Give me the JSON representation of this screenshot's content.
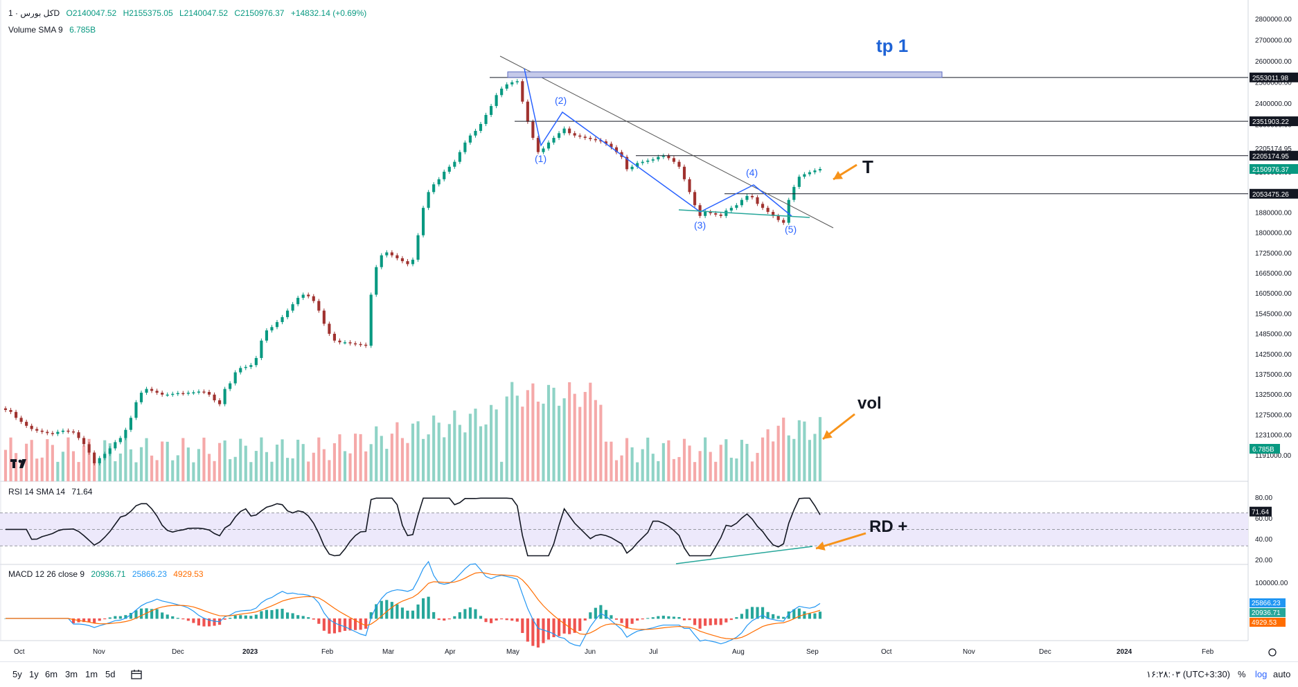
{
  "legend": {
    "symbol": "کل بورس · 1D",
    "open": "O2140047.52",
    "high": "H2155375.05",
    "low": "L2140047.52",
    "close": "C2150976.37",
    "change": "+14832.14 (+0.69%)",
    "volume_label": "Volume SMA 9",
    "volume_value": "6.785B",
    "rsi_label": "RSI 14 SMA 14",
    "rsi_value": "71.64",
    "macd_label": "MACD 12 26 close 9",
    "macd_value": "20936.71",
    "macd_signal": "25866.23",
    "macd_hist": "4929.53"
  },
  "colors": {
    "up": "#089981",
    "down": "#a0322f",
    "vol_up": "#8fd3c6",
    "vol_down": "#f5a9a9",
    "wave": "#2962ff",
    "support": "#26a69a",
    "arrow": "#f7931a",
    "rsi_band": "#ede9fb",
    "macd_line": "#2196f3",
    "signal_line": "#ff6d00"
  },
  "chart_data": {
    "type": "candlestick",
    "price_axis_ticks": [
      "2800000.00",
      "2700000.00",
      "2600000.00",
      "2500000.00",
      "2400000.00",
      "2300000.00",
      "2205174.95",
      "2100000.00",
      "1960000.00",
      "1880000.00",
      "1800000.00",
      "1725000.00",
      "1665000.00",
      "1605000.00",
      "1545000.00",
      "1485000.00",
      "1425000.00",
      "1375000.00",
      "1325000.00",
      "1275000.00",
      "1231000.00",
      "1191000.00"
    ],
    "time_axis": [
      "Oct",
      "Nov",
      "Dec",
      "2023",
      "Feb",
      "Mar",
      "Apr",
      "May",
      "Jun",
      "Jul",
      "Aug",
      "Sep",
      "Oct",
      "Nov",
      "Dec",
      "2024",
      "Feb"
    ],
    "horizontal_levels": [
      {
        "label": "2553011.98",
        "value": 2553011.98
      },
      {
        "label": "2351903.22",
        "value": 2351903.22
      },
      {
        "label": "2205174.95",
        "value": 2205174.95
      },
      {
        "label": "2053475.26",
        "value": 2053475.26
      }
    ],
    "last_price_label": "2150976.37",
    "volume_sma_label": "6.785B",
    "rsi_axis": [
      "80.00",
      "60.00",
      "40.00",
      "20.00"
    ],
    "rsi_last_label": "71.64",
    "macd_axis": [
      "100000.00"
    ],
    "macd_labels": [
      "25866.23",
      "20936.71",
      "4929.53"
    ],
    "wave_labels": [
      "(1)",
      "(2)",
      "(3)",
      "(4)",
      "(5)"
    ],
    "annotations": {
      "target": "tp 1",
      "t": "T",
      "vol": "vol",
      "rd": "RD +"
    },
    "close_series": [
      1370000,
      1365000,
      1350000,
      1340000,
      1330000,
      1322000,
      1318000,
      1315000,
      1312000,
      1310000,
      1315000,
      1318000,
      1316000,
      1314000,
      1300000,
      1285000,
      1265000,
      1240000,
      1252000,
      1262000,
      1275000,
      1290000,
      1300000,
      1320000,
      1350000,
      1390000,
      1415000,
      1425000,
      1420000,
      1415000,
      1410000,
      1410000,
      1412000,
      1414000,
      1413000,
      1415000,
      1416000,
      1418000,
      1417000,
      1410000,
      1395000,
      1385000,
      1425000,
      1440000,
      1470000,
      1482000,
      1485000,
      1490000,
      1510000,
      1560000,
      1590000,
      1600000,
      1615000,
      1630000,
      1650000,
      1670000,
      1690000,
      1700000,
      1695000,
      1680000,
      1650000,
      1610000,
      1580000,
      1560000,
      1555000,
      1555000,
      1552000,
      1550000,
      1548000,
      1545000,
      1700000,
      1790000,
      1830000,
      1840000,
      1830000,
      1820000,
      1810000,
      1800000,
      1815000,
      1900000,
      2000000,
      2060000,
      2090000,
      2110000,
      2140000,
      2160000,
      2180000,
      2220000,
      2260000,
      2290000,
      2310000,
      2340000,
      2380000,
      2420000,
      2470000,
      2500000,
      2520000,
      2530000,
      2535000,
      2440000,
      2350000,
      2280000,
      2220000,
      2235000,
      2260000,
      2280000,
      2300000,
      2320000,
      2300000,
      2290000,
      2285000,
      2280000,
      2275000,
      2270000,
      2265000,
      2255000,
      2240000,
      2220000,
      2200000,
      2150000,
      2160000,
      2175000,
      2180000,
      2185000,
      2190000,
      2200000,
      2205000,
      2195000,
      2180000,
      2160000,
      2110000,
      2060000,
      2010000,
      1970000,
      1985000,
      1980000,
      1975000,
      1970000,
      1990000,
      2000000,
      2010000,
      2030000,
      2045000,
      2040000,
      2015000,
      2000000,
      1985000,
      1970000,
      1955000,
      1945000,
      2030000,
      2080000,
      2120000,
      2130000,
      2138000,
      2145000,
      2150976
    ]
  },
  "toolbar": {
    "ranges": [
      "5y",
      "1y",
      "6m",
      "3m",
      "1m",
      "5d"
    ],
    "time": "۱۶:۲۸:۰۳ (UTC+3:30)",
    "percent": "%",
    "log": "log",
    "auto": "auto"
  }
}
